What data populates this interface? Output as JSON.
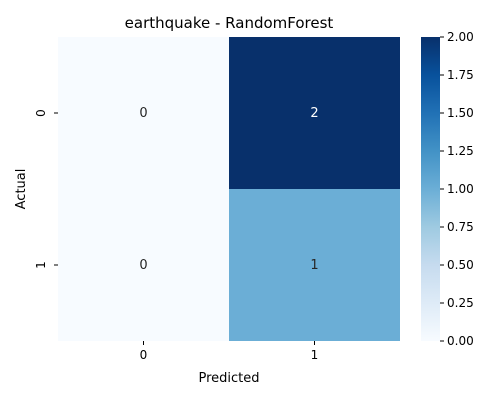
{
  "chart_data": {
    "type": "heatmap",
    "title": "earthquake - RandomForest",
    "xlabel": "Predicted",
    "ylabel": "Actual",
    "x_categories": [
      "0",
      "1"
    ],
    "y_categories": [
      "0",
      "1"
    ],
    "values": [
      [
        0,
        2
      ],
      [
        0,
        1
      ]
    ],
    "annotations": [
      [
        "0",
        "2"
      ],
      [
        "0",
        "1"
      ]
    ],
    "vmin": 0,
    "vmax": 2,
    "colormap": "Blues",
    "colorbar": {
      "ticks": [
        0.0,
        0.25,
        0.5,
        0.75,
        1.0,
        1.25,
        1.5,
        1.75,
        2.0
      ],
      "tick_labels": [
        "0.00",
        "0.25",
        "0.50",
        "0.75",
        "1.00",
        "1.25",
        "1.50",
        "1.75",
        "2.00"
      ]
    },
    "colors": {
      "low": "#f7fbff",
      "mid": "#6baed6",
      "high": "#08306b",
      "dark_text": "#262626",
      "light_text": "#ffffff"
    }
  }
}
